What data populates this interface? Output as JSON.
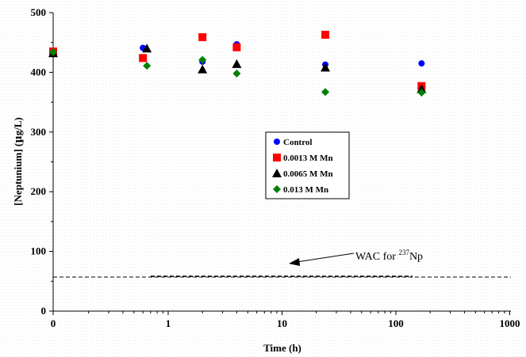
{
  "chart_data": {
    "type": "scatter",
    "xlabel": "Time (h)",
    "ylabel_prefix": "[Neptunium]  (",
    "ylabel_mu": "µ",
    "ylabel_suffix": "g/L)",
    "x_scale": "log",
    "xlim": [
      0,
      1000
    ],
    "ylim": [
      0,
      500
    ],
    "x_ticks": [
      0,
      1,
      10,
      100,
      1000
    ],
    "x_tick_labels": [
      "0",
      "1",
      "10",
      "100",
      "1000"
    ],
    "y_ticks": [
      0,
      100,
      200,
      300,
      400,
      500
    ],
    "y_tick_labels": [
      "0",
      "100",
      "200",
      "300",
      "400",
      "500"
    ],
    "grid": false,
    "legend_position": "center-right",
    "series": [
      {
        "name": "Control",
        "marker": "circle",
        "color": "#0000ff",
        "x": [
          0,
          0.6,
          2,
          4,
          24,
          168
        ],
        "y": [
          435,
          441,
          418,
          447,
          413,
          415
        ]
      },
      {
        "name": "0.0013 M Mn",
        "marker": "square",
        "color": "#ff0000",
        "x": [
          0,
          0.6,
          2,
          4,
          24,
          168
        ],
        "y": [
          435,
          424,
          459,
          442,
          463,
          377
        ]
      },
      {
        "name": "0.0065 M Mn",
        "marker": "triangle",
        "color": "#000000",
        "x": [
          0,
          0.65,
          2,
          4,
          24,
          168
        ],
        "y": [
          432,
          440,
          405,
          414,
          408,
          372
        ]
      },
      {
        "name": "0.013 M Mn",
        "marker": "diamond",
        "color": "#008000",
        "x": [
          0,
          0.65,
          2,
          4,
          24,
          168
        ],
        "y": [
          434,
          411,
          421,
          398,
          367,
          366
        ]
      }
    ],
    "reference_line": {
      "y": 57,
      "label_prefix": "WAC for ",
      "label_sup": "237",
      "label_suffix": "Np"
    }
  }
}
